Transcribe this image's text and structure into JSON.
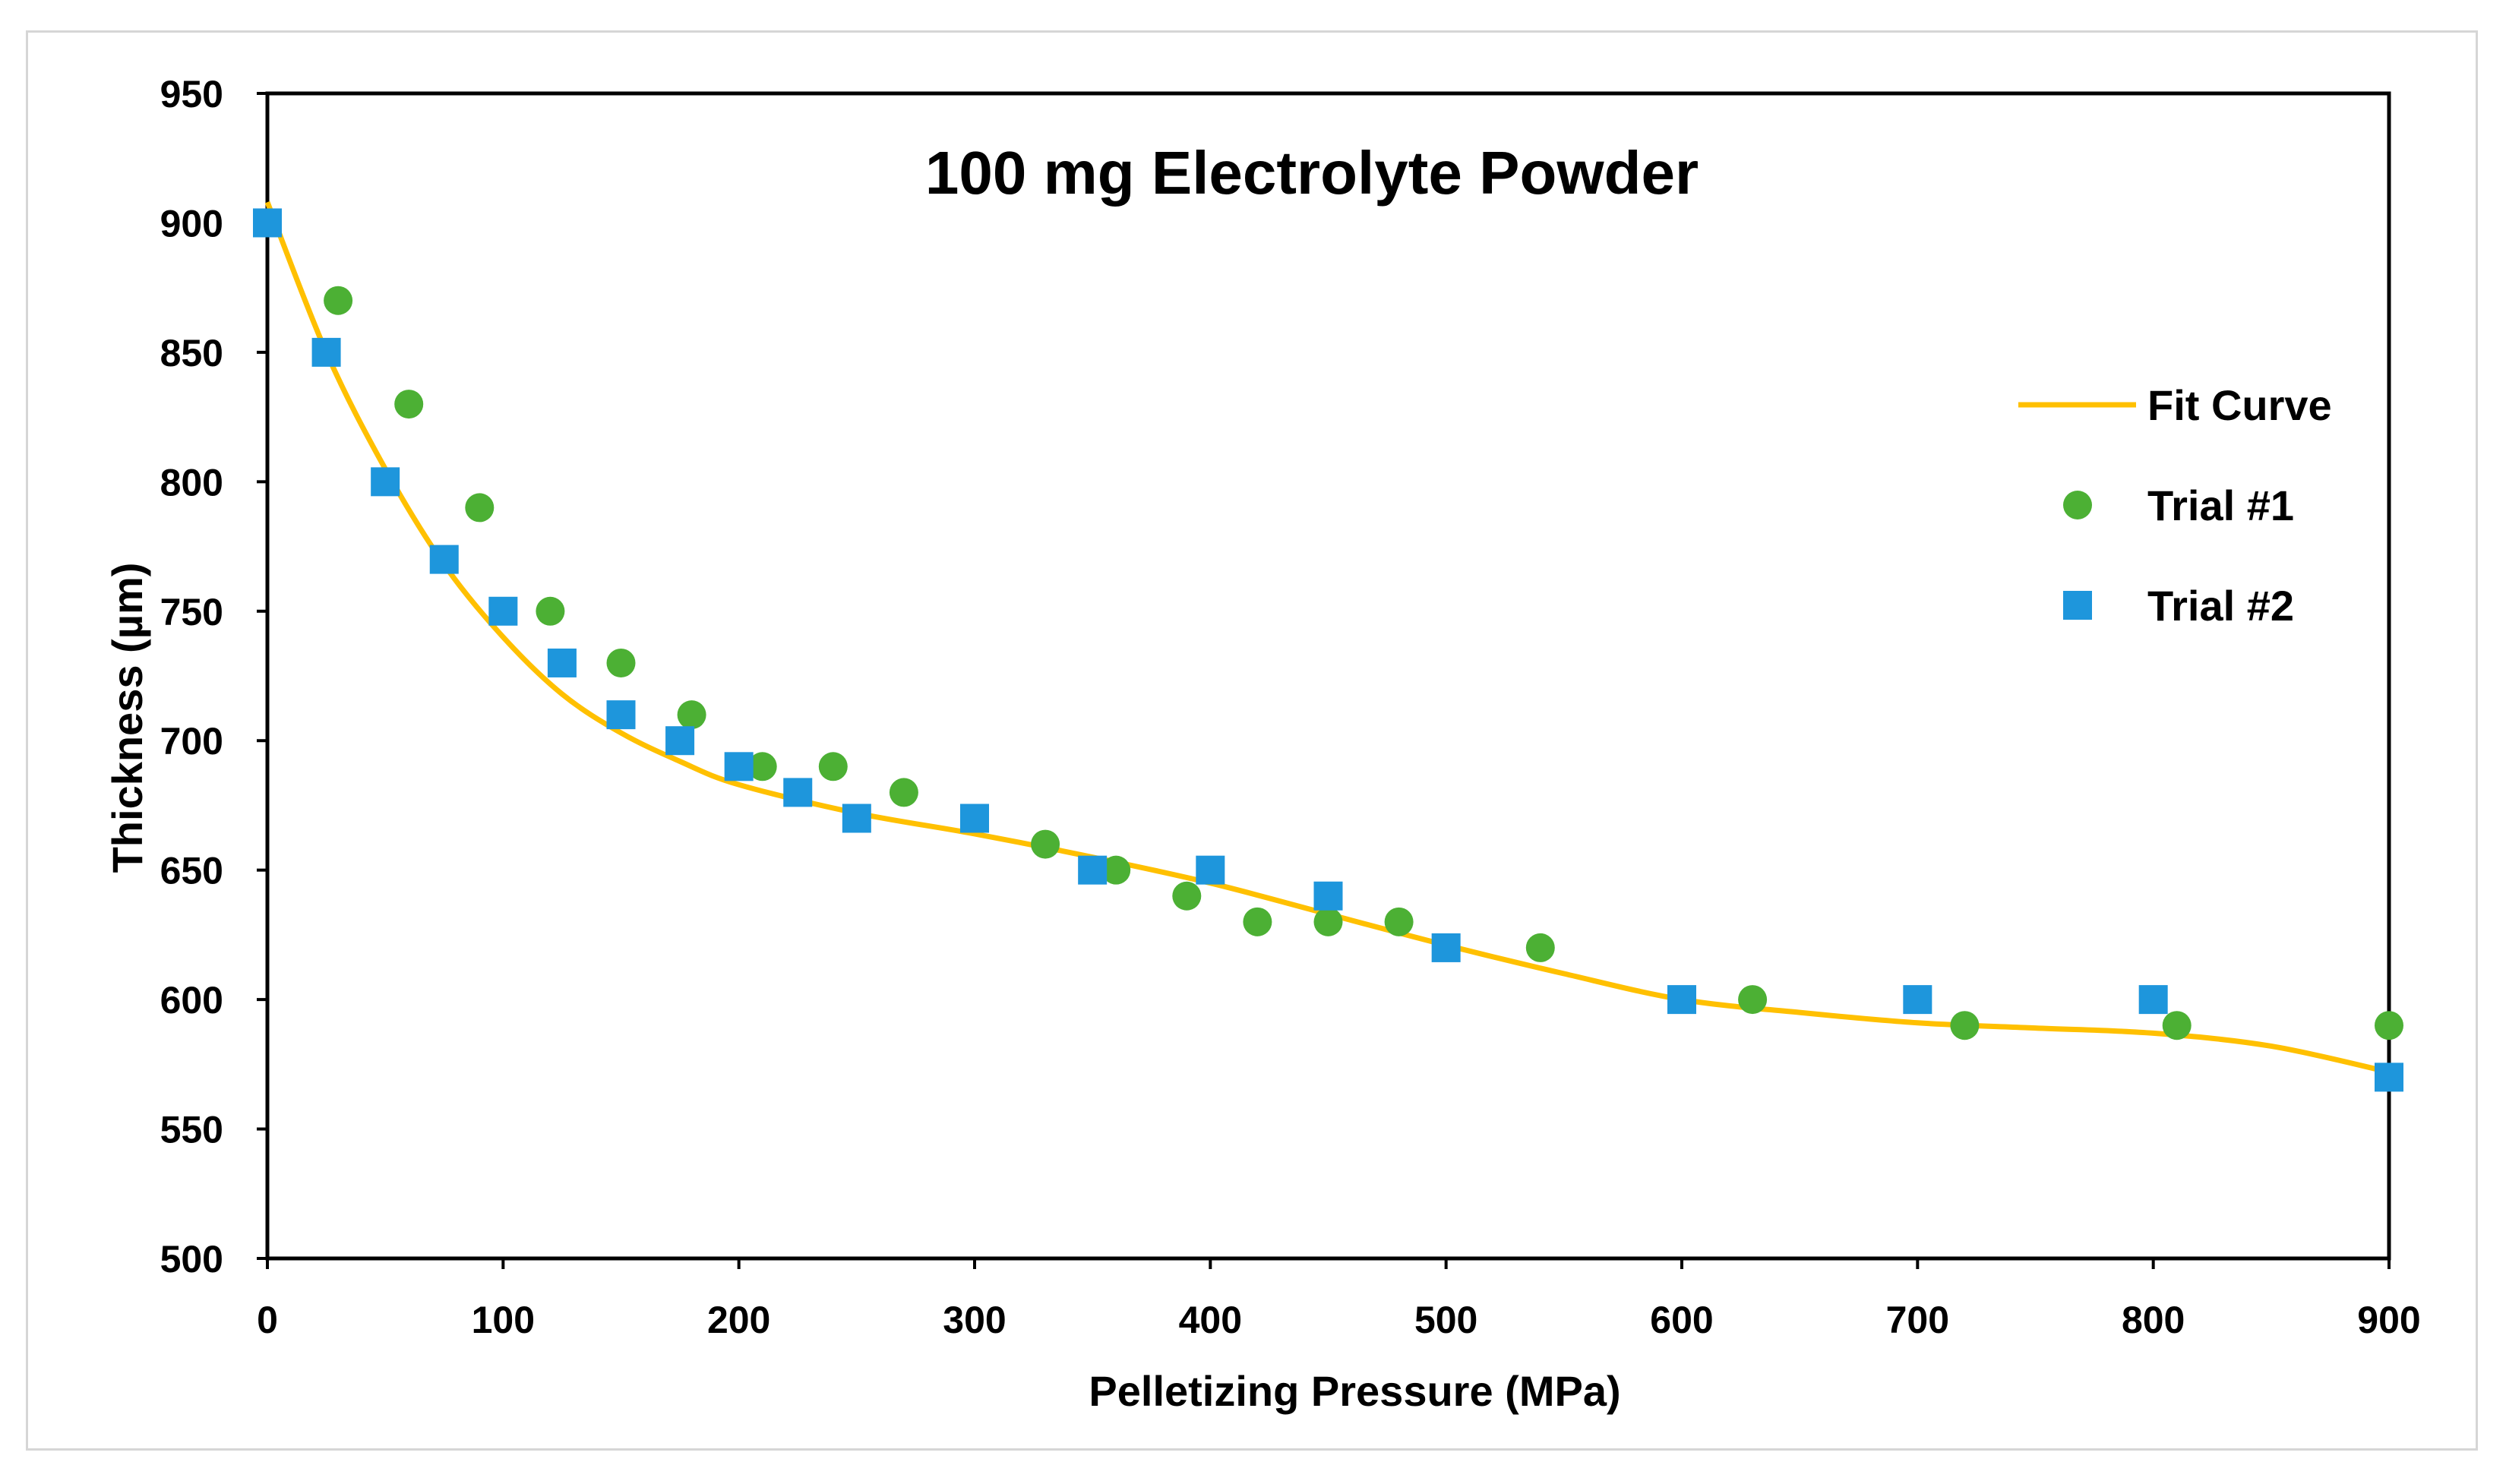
{
  "chart_data": {
    "type": "scatter",
    "title": "100 mg Electrolyte Powder",
    "xlabel": "Pelletizing Pressure (MPa)",
    "ylabel": "Thickness (µm)",
    "xlim": [
      0,
      900
    ],
    "ylim": [
      500,
      950
    ],
    "xticks": [
      "0",
      "100",
      "200",
      "300",
      "400",
      "500",
      "600",
      "700",
      "800",
      "900"
    ],
    "yticks": [
      "500",
      "550",
      "600",
      "650",
      "700",
      "750",
      "800",
      "850",
      "900",
      "950"
    ],
    "grid": false,
    "legend_position": "right",
    "colors": {
      "fit": "#FFC000",
      "trial1": "#4CB034",
      "trial2": "#1E96DC"
    },
    "series": [
      {
        "name": "Fit Curve",
        "kind": "line",
        "x": [
          0,
          25,
          50,
          75,
          100,
          125,
          150,
          175,
          200,
          250,
          300,
          350,
          400,
          450,
          500,
          550,
          600,
          650,
          700,
          750,
          800,
          850,
          900
        ],
        "y": [
          908,
          850,
          805,
          768,
          740,
          718,
          703,
          692,
          683,
          672,
          664,
          655,
          645,
          633,
          621,
          610,
          600,
          595,
          591,
          589,
          587,
          582,
          572
        ]
      },
      {
        "name": "Trial #1",
        "kind": "scatter",
        "marker": "circle",
        "x": [
          30,
          60,
          90,
          120,
          150,
          180,
          210,
          240,
          270,
          330,
          360,
          390,
          420,
          450,
          480,
          540,
          630,
          720,
          810,
          900
        ],
        "y": [
          870,
          830,
          790,
          750,
          730,
          710,
          690,
          690,
          680,
          660,
          650,
          640,
          630,
          630,
          630,
          620,
          600,
          590,
          590,
          590
        ]
      },
      {
        "name": "Trial #2",
        "kind": "scatter",
        "marker": "square",
        "x": [
          0,
          25,
          50,
          75,
          100,
          125,
          150,
          175,
          200,
          225,
          250,
          300,
          350,
          400,
          450,
          500,
          600,
          700,
          800,
          900
        ],
        "y": [
          900,
          850,
          800,
          770,
          750,
          730,
          710,
          700,
          690,
          680,
          670,
          670,
          650,
          650,
          640,
          620,
          600,
          600,
          600,
          570
        ]
      }
    ]
  }
}
